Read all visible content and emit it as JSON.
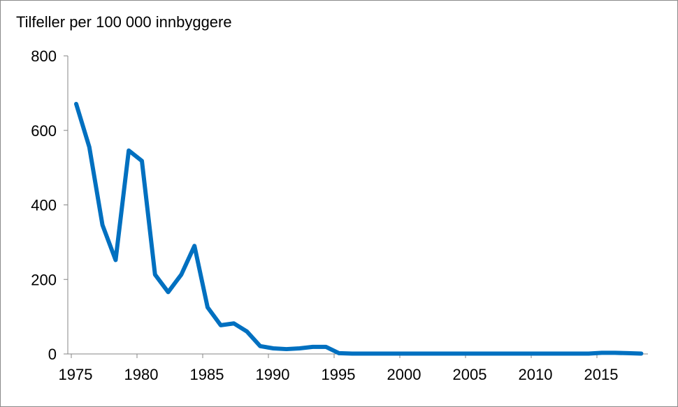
{
  "chart_data": {
    "type": "line",
    "title": "Tilfeller per 100 000 innbyggere",
    "xlabel": "",
    "ylabel": "Tilfeller per 100 000 innbyggere",
    "ylim": [
      0,
      800
    ],
    "xlim": [
      1975,
      2019
    ],
    "yticks": [
      0,
      200,
      400,
      600,
      800
    ],
    "xticks": [
      1975,
      1980,
      1985,
      1990,
      1995,
      2000,
      2005,
      2010,
      2015
    ],
    "grid": false,
    "series": [
      {
        "name": "Tilfeller",
        "color": "#0070c0",
        "x": [
          1975,
          1976,
          1977,
          1978,
          1979,
          1980,
          1981,
          1982,
          1983,
          1984,
          1985,
          1986,
          1987,
          1988,
          1989,
          1990,
          1991,
          1992,
          1993,
          1994,
          1995,
          1996,
          1997,
          1998,
          1999,
          2000,
          2001,
          2002,
          2003,
          2004,
          2005,
          2006,
          2007,
          2008,
          2009,
          2010,
          2011,
          2012,
          2013,
          2014,
          2015,
          2016,
          2017,
          2018
        ],
        "values": [
          671,
          555,
          346,
          252,
          546,
          518,
          213,
          166,
          213,
          290,
          125,
          77,
          82,
          60,
          21,
          15,
          13,
          15,
          19,
          19,
          2,
          1,
          1,
          1,
          1,
          1,
          1,
          1,
          1,
          1,
          1,
          1,
          1,
          1,
          1,
          1,
          1,
          1,
          1,
          1,
          3,
          3,
          2,
          1
        ]
      }
    ]
  }
}
